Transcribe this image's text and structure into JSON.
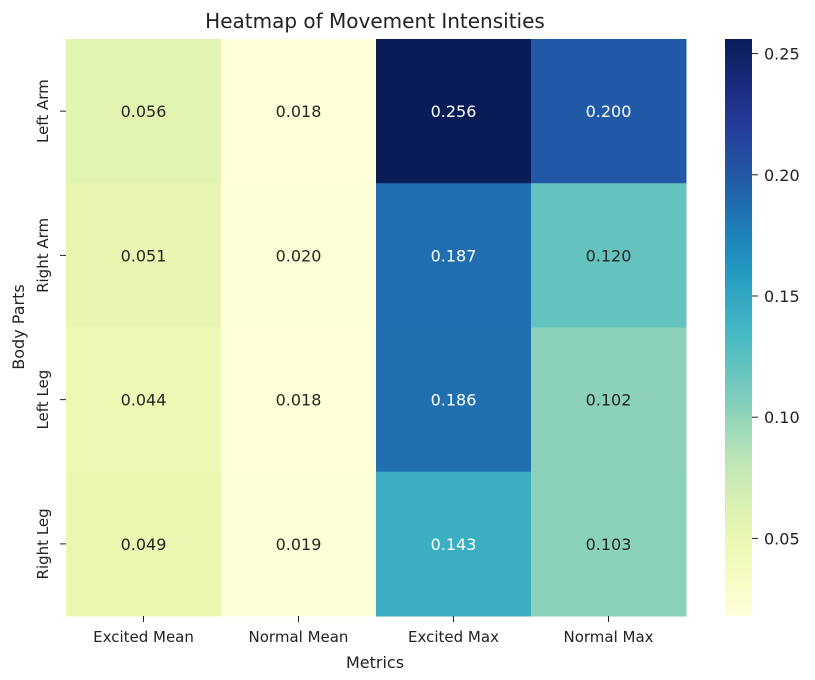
{
  "chart_data": {
    "type": "heatmap",
    "title": "Heatmap of Movement Intensities",
    "xlabel": "Metrics",
    "ylabel": "Body Parts",
    "x_categories": [
      "Excited Mean",
      "Normal Mean",
      "Excited Max",
      "Normal Max"
    ],
    "y_categories": [
      "Left Arm",
      "Right Arm",
      "Left Leg",
      "Right Leg"
    ],
    "values": [
      [
        0.056,
        0.018,
        0.256,
        0.2
      ],
      [
        0.051,
        0.02,
        0.187,
        0.12
      ],
      [
        0.044,
        0.018,
        0.186,
        0.102
      ],
      [
        0.049,
        0.019,
        0.143,
        0.103
      ]
    ],
    "value_labels": [
      [
        "0.056",
        "0.018",
        "0.256",
        "0.200"
      ],
      [
        "0.051",
        "0.020",
        "0.187",
        "0.120"
      ],
      [
        "0.044",
        "0.018",
        "0.186",
        "0.102"
      ],
      [
        "0.049",
        "0.019",
        "0.143",
        "0.103"
      ]
    ],
    "colormap": "YlGnBu",
    "colorbar": {
      "range": [
        0.018,
        0.256
      ],
      "ticks": [
        0.05,
        0.1,
        0.15,
        0.2,
        0.25
      ],
      "tick_labels": [
        "0.05",
        "0.10",
        "0.15",
        "0.20",
        "0.25"
      ]
    }
  }
}
